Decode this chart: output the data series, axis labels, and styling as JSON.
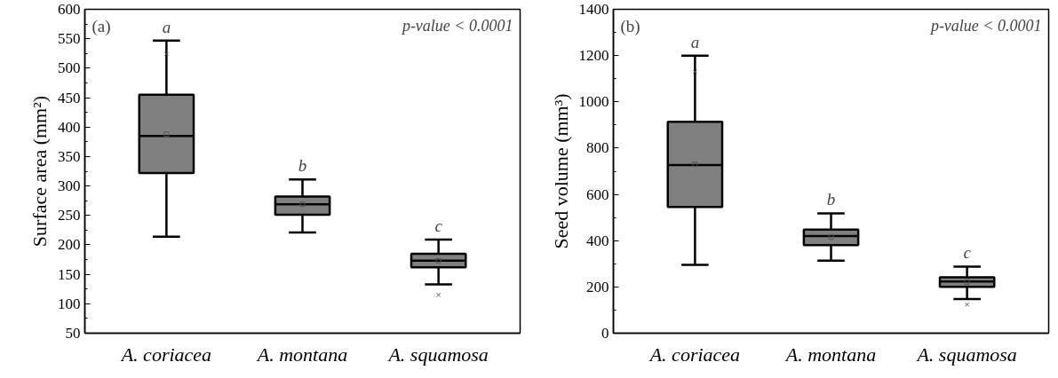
{
  "chart_data": [
    {
      "type": "box",
      "ylabel": "Surface area (mm²)",
      "categories": [
        "A. coriacea",
        "A. montana",
        "A. squamosa"
      ],
      "color": "#808080",
      "ylim": [
        50,
        600
      ],
      "yticks": [
        50,
        100,
        150,
        200,
        250,
        300,
        350,
        400,
        450,
        500,
        550,
        600
      ],
      "grid": false,
      "boxes": [
        {
          "low": 214,
          "q1": 322,
          "median": 385,
          "q3": 455,
          "high": 547,
          "mean": 388,
          "outliers": [
            524
          ]
        },
        {
          "low": 221,
          "q1": 251,
          "median": 269,
          "q3": 282,
          "high": 311,
          "mean": 269
        },
        {
          "low": 133,
          "q1": 162,
          "median": 173,
          "q3": 185,
          "high": 209,
          "mean": 173,
          "outliers": [
            115
          ]
        }
      ],
      "annotations": [
        "(a)",
        "p-value < 0.0001",
        "a",
        "b",
        "c"
      ]
    },
    {
      "type": "box",
      "ylabel": "Seed volume (mm³)",
      "categories": [
        "A. coriacea",
        "A. montana",
        "A. squamosa"
      ],
      "color": "#808080",
      "ylim": [
        0,
        1400
      ],
      "yticks": [
        0,
        200,
        400,
        600,
        800,
        1000,
        1200,
        1400
      ],
      "grid": false,
      "boxes": [
        {
          "low": 295,
          "q1": 546,
          "median": 727,
          "q3": 914,
          "high": 1200,
          "mean": 730,
          "outliers": [
            1130
          ]
        },
        {
          "low": 314,
          "q1": 381,
          "median": 420,
          "q3": 448,
          "high": 518,
          "mean": 415
        },
        {
          "low": 148,
          "q1": 200,
          "median": 223,
          "q3": 242,
          "high": 288,
          "mean": 220,
          "outliers": [
            124
          ]
        }
      ],
      "annotations": [
        "(b)",
        "p-value < 0.0001",
        "a",
        "b",
        "c"
      ]
    }
  ]
}
